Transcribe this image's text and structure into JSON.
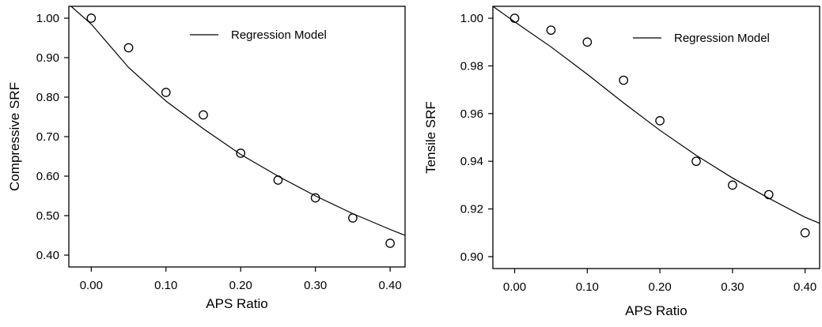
{
  "chart_data": [
    {
      "type": "scatter",
      "title": "",
      "xlabel": "APS Ratio",
      "ylabel": "Compressive SRF",
      "xlim": [
        -0.03,
        0.42
      ],
      "ylim": [
        0.37,
        1.03
      ],
      "xticks": [
        0.0,
        0.1,
        0.2,
        0.3,
        0.4
      ],
      "xtick_labels": [
        "0.00",
        "0.10",
        "0.20",
        "0.30",
        "0.40"
      ],
      "yticks": [
        0.4,
        0.5,
        0.6,
        0.7,
        0.8,
        0.9,
        1.0
      ],
      "ytick_labels": [
        "0.40",
        "0.50",
        "0.60",
        "0.70",
        "0.80",
        "0.90",
        "1.00"
      ],
      "grid": false,
      "legend_position": "top-right",
      "legend": [
        {
          "label": "Regression Model",
          "marker": "line"
        }
      ],
      "series": [
        {
          "kind": "points",
          "marker": "circle",
          "x": [
            0.0,
            0.05,
            0.1,
            0.15,
            0.2,
            0.25,
            0.3,
            0.35,
            0.4
          ],
          "y": [
            1.0,
            0.925,
            0.812,
            0.755,
            0.658,
            0.59,
            0.545,
            0.494,
            0.43
          ]
        },
        {
          "name": "Regression Model",
          "kind": "line",
          "x": [
            -0.03,
            0.0,
            0.05,
            0.1,
            0.15,
            0.2,
            0.25,
            0.3,
            0.35,
            0.4,
            0.42
          ],
          "y": [
            1.035,
            0.985,
            0.875,
            0.79,
            0.72,
            0.655,
            0.6,
            0.55,
            0.505,
            0.465,
            0.45
          ]
        }
      ]
    },
    {
      "type": "scatter",
      "title": "",
      "xlabel": "APS Ratio",
      "ylabel": "Tensile SRF",
      "xlim": [
        -0.03,
        0.42
      ],
      "ylim": [
        0.895,
        1.005
      ],
      "xticks": [
        0.0,
        0.1,
        0.2,
        0.3,
        0.4
      ],
      "xtick_labels": [
        "0.00",
        "0.10",
        "0.20",
        "0.30",
        "0.40"
      ],
      "yticks": [
        0.9,
        0.92,
        0.94,
        0.96,
        0.98,
        1.0
      ],
      "ytick_labels": [
        "0.90",
        "0.92",
        "0.94",
        "0.96",
        "0.98",
        "1.00"
      ],
      "grid": false,
      "legend_position": "top-right",
      "legend": [
        {
          "label": "Regression Model",
          "marker": "line"
        }
      ],
      "series": [
        {
          "kind": "points",
          "marker": "circle",
          "x": [
            0.0,
            0.05,
            0.1,
            0.15,
            0.2,
            0.25,
            0.3,
            0.35,
            0.4
          ],
          "y": [
            1.0,
            0.995,
            0.99,
            0.974,
            0.957,
            0.94,
            0.93,
            0.926,
            0.91
          ]
        },
        {
          "name": "Regression Model",
          "kind": "line",
          "x": [
            -0.03,
            0.0,
            0.05,
            0.1,
            0.15,
            0.2,
            0.25,
            0.3,
            0.35,
            0.4,
            0.42
          ],
          "y": [
            1.005,
            0.9985,
            0.988,
            0.9765,
            0.9645,
            0.953,
            0.9425,
            0.933,
            0.9245,
            0.9165,
            0.914
          ]
        }
      ]
    }
  ]
}
